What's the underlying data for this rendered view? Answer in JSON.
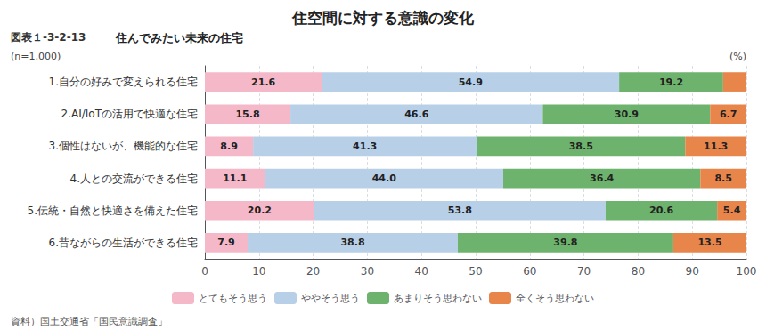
{
  "chart_data": {
    "type": "bar",
    "orientation": "horizontal",
    "stacked": true,
    "title": "住空間に対する意識の変化",
    "subtitle": "住んでみたい未来の住宅",
    "annotations": [
      "図表１-3-2-13",
      "(n=1,000)",
      "資料）国土交通省「国民意識調査」"
    ],
    "xlabel": "(%)",
    "categories": [
      "1.自分の好みで変えられる住宅",
      "2.AI/IoTの活用で快適な住宅",
      "3.個性はないが、機能的な住宅",
      "4.人との交流ができる住宅",
      "5.伝統・自然と快適さを備えた住宅",
      "6.昔ながらの生活ができる住宅"
    ],
    "series": [
      {
        "name": "とてもそう思う",
        "color": "#f4b8c8",
        "values": [
          21.6,
          15.8,
          8.9,
          11.1,
          20.2,
          7.9
        ],
        "value_labels": [
          "21.6",
          "15.8",
          "8.9",
          "11.1",
          "20.2",
          "7.9"
        ]
      },
      {
        "name": "ややそう思う",
        "color": "#b8cfe8",
        "values": [
          54.9,
          46.6,
          41.3,
          44.0,
          53.8,
          38.8
        ],
        "value_labels": [
          "54.9",
          "46.6",
          "41.3",
          "44.0",
          "53.8",
          "38.8"
        ]
      },
      {
        "name": "あまりそう思わない",
        "color": "#6db36d",
        "values": [
          19.2,
          30.9,
          38.5,
          36.4,
          20.6,
          39.8
        ],
        "value_labels": [
          "19.2",
          "30.9",
          "38.5",
          "36.4",
          "20.6",
          "39.8"
        ]
      },
      {
        "name": "全くそう思わない",
        "color": "#e8854a",
        "values": [
          4.3,
          6.7,
          11.3,
          8.5,
          5.4,
          13.5
        ],
        "value_labels": [
          null,
          "6.7",
          "11.3",
          "8.5",
          "5.4",
          "13.5"
        ]
      }
    ],
    "xlim": [
      0,
      100
    ],
    "xticks": [
      0,
      10,
      20,
      30,
      40,
      50,
      60,
      70,
      80,
      90,
      100
    ],
    "grid": true,
    "legend": "bottom",
    "data_labels": true
  }
}
